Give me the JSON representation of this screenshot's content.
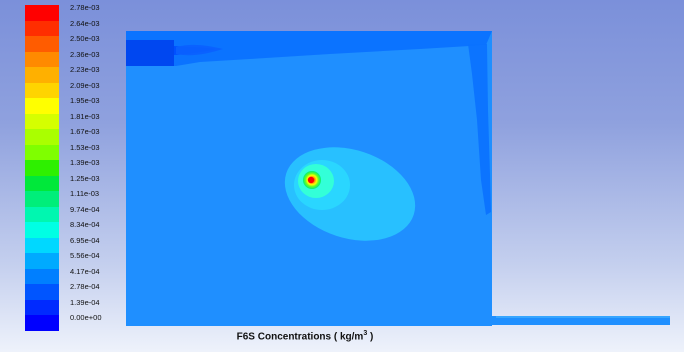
{
  "window": {
    "caption_prefix": "F6S Concentrations ( kg/m",
    "caption_exponent": "3",
    "caption_suffix": " )"
  },
  "legend": {
    "labels": [
      "2.78e-03",
      "2.64e-03",
      "2.50e-03",
      "2.36e-03",
      "2.23e-03",
      "2.09e-03",
      "1.95e-03",
      "1.81e-03",
      "1.67e-03",
      "1.53e-03",
      "1.39e-03",
      "1.25e-03",
      "1.11e-03",
      "9.74e-04",
      "8.34e-04",
      "6.95e-04",
      "5.56e-04",
      "4.17e-04",
      "2.78e-04",
      "1.39e-04",
      "0.00e+00"
    ],
    "colors": [
      "#ff0000",
      "#ff2e00",
      "#ff5c00",
      "#ff8a00",
      "#ffb000",
      "#ffd400",
      "#ffff00",
      "#d5ff00",
      "#aaff00",
      "#7fff00",
      "#2ef000",
      "#00e83a",
      "#00ee7a",
      "#00f7b0",
      "#00ffe4",
      "#00d8ff",
      "#00aaff",
      "#007fff",
      "#0055ff",
      "#002aff",
      "#0000ff"
    ]
  },
  "colors": {
    "background_top": "#7b90da",
    "background_bottom": "#eef2fb",
    "domain_fill": "#1f8fff",
    "inlet_fill": "#0047f0",
    "plume_outer": "#28c0ff",
    "plume_mid": "#2ad6ff",
    "plume_inner": "#33ffd8",
    "core_green": "#38e000",
    "core_yellow": "#ffff00",
    "core_red": "#ff0000"
  },
  "icons": {
    "colormap": "contour-colormap-legend"
  }
}
